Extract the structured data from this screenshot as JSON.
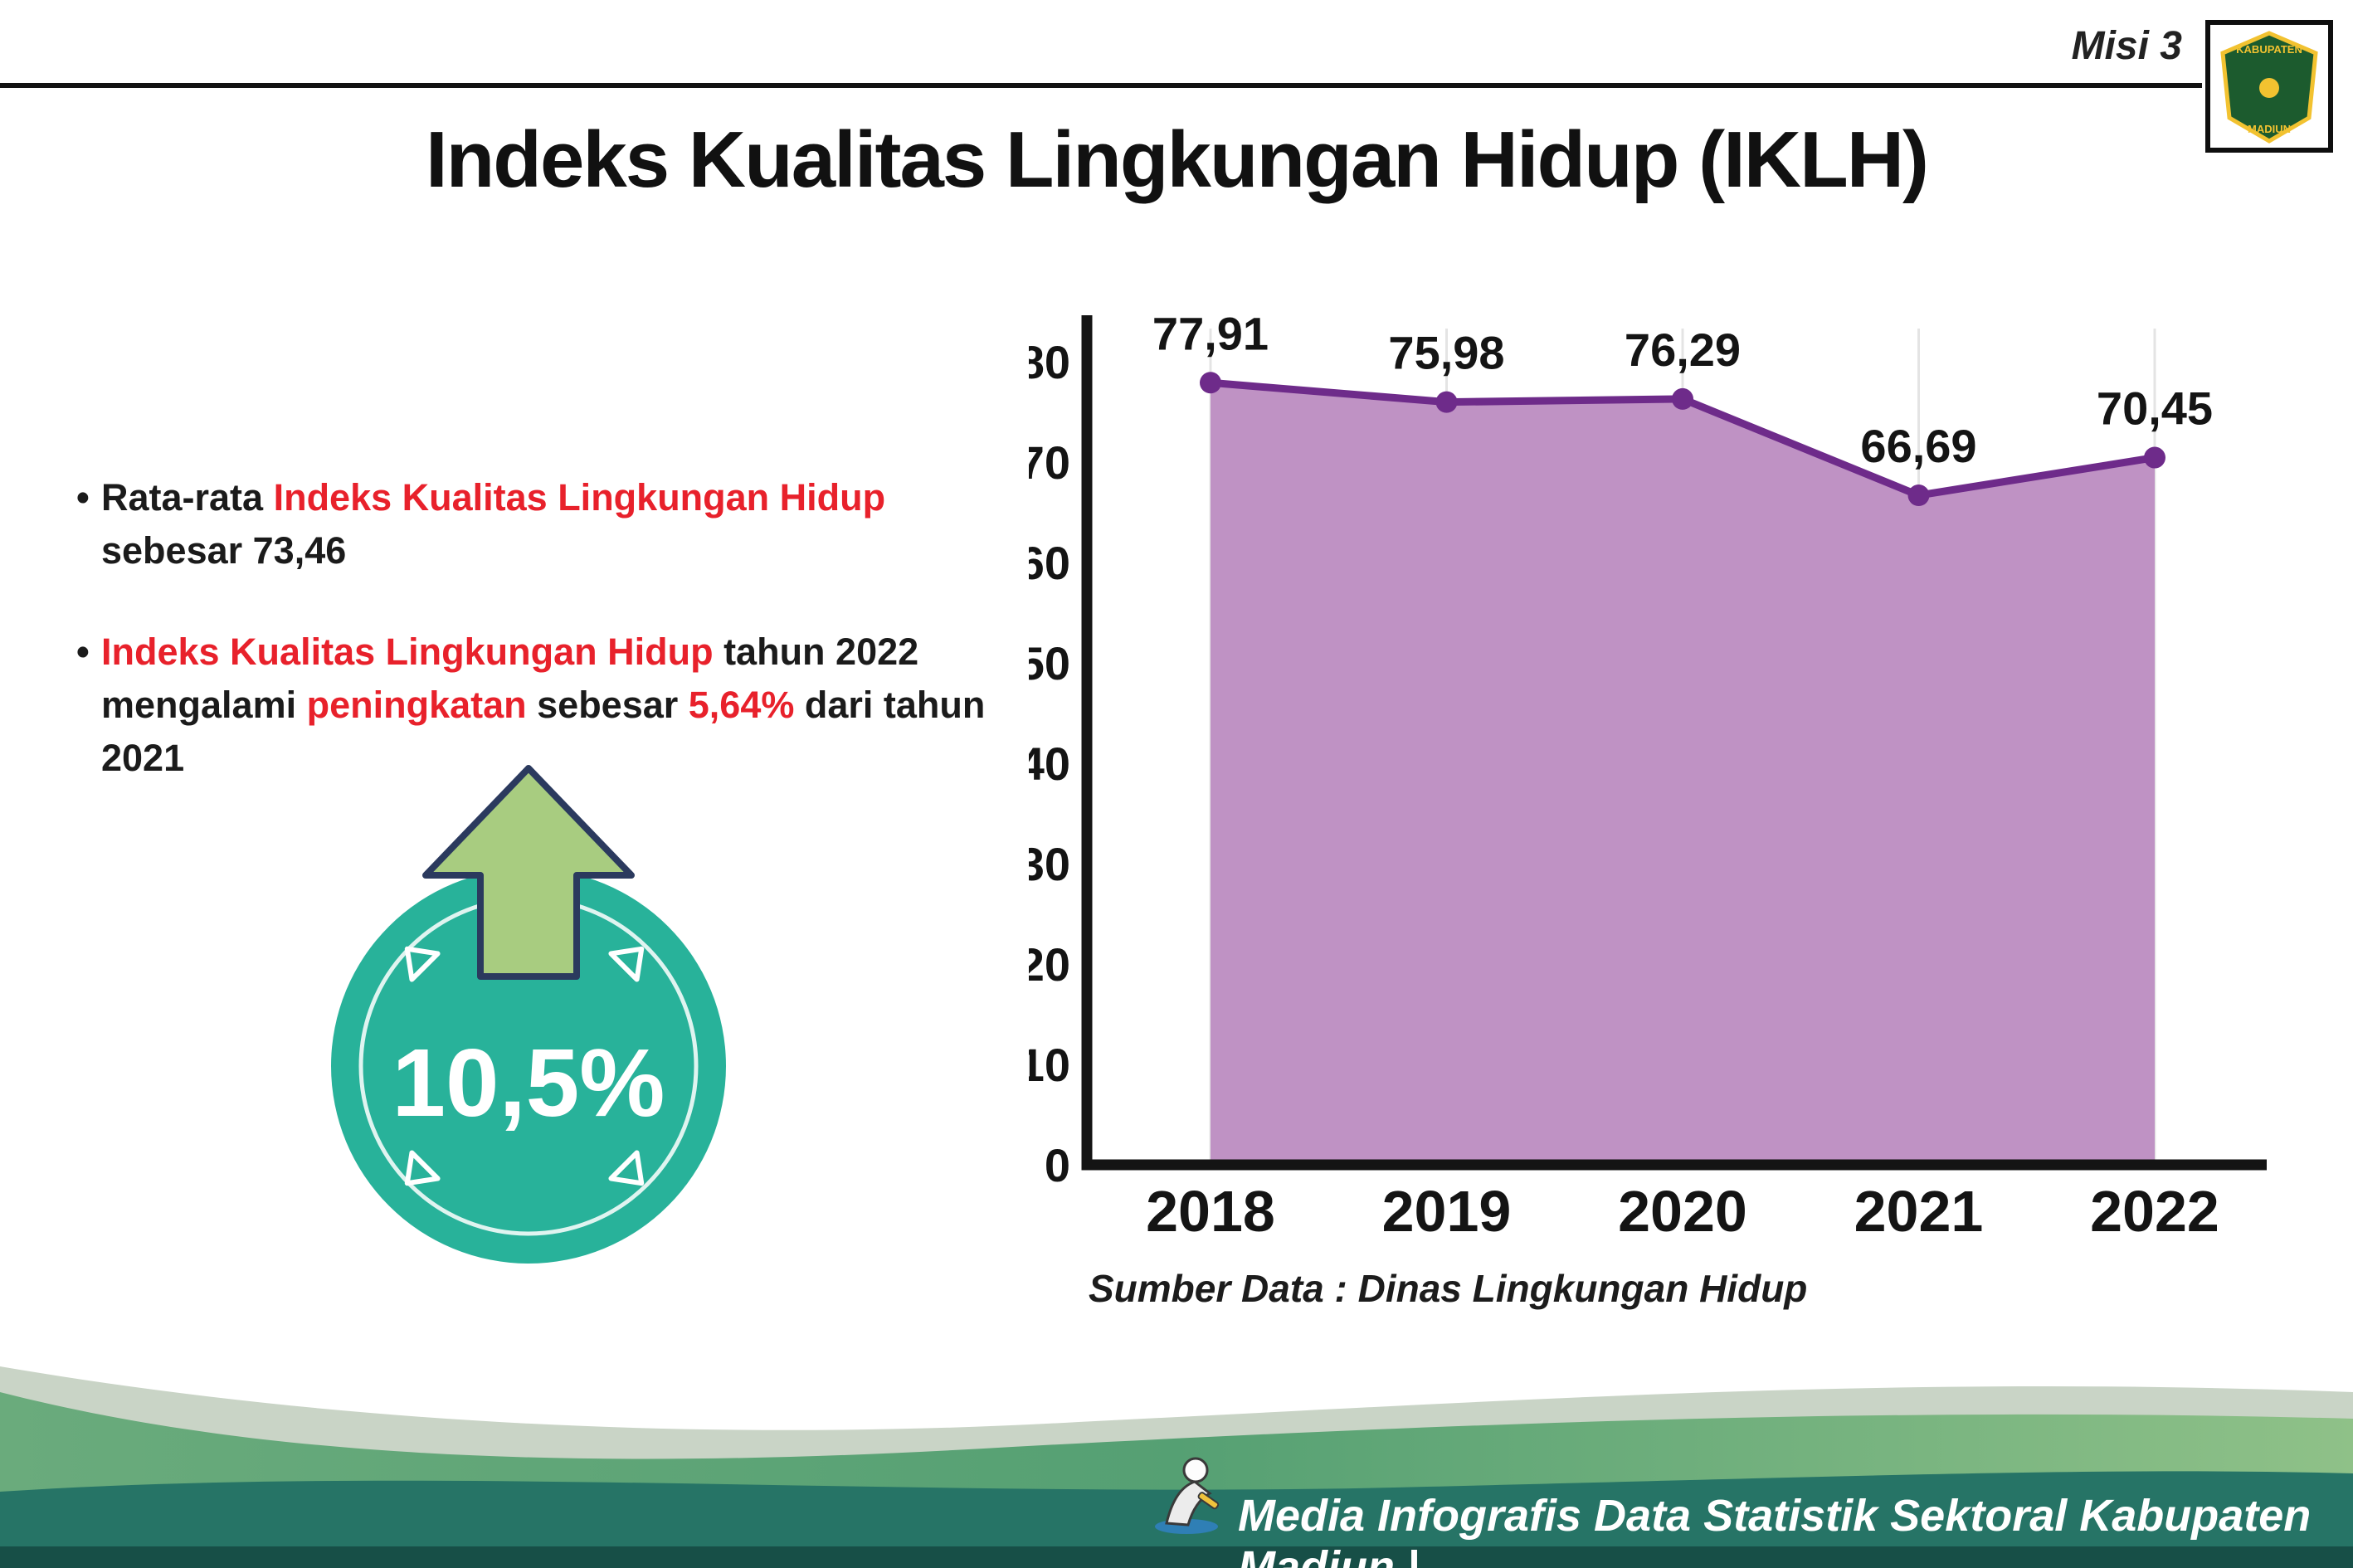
{
  "header": {
    "misi": "Misi 3",
    "title": "Indeks Kualitas Lingkungan Hidup (IKLH)"
  },
  "logo": {
    "line1": "KABUPATEN",
    "line2": "MADIUN"
  },
  "bullets": {
    "marker": "•",
    "b1": {
      "pre": "Rata-rata ",
      "highlight": "Indeks Kualitas Lingkungan Hidup",
      "post": " sebesar 73,46"
    },
    "b2": {
      "h1": "Indeks Kualitas Lingkungan Hidup",
      "t1": " tahun 2022 mengalami ",
      "h2": "peningkatan",
      "t2": " sebesar ",
      "h3": "5,64%",
      "t3": " dari tahun 2021"
    }
  },
  "badge": {
    "value": "10,5%"
  },
  "chart_data": {
    "type": "area",
    "title": "Indeks Kualitas Lingkungan Hidup (IKLH)",
    "categories": [
      "2018",
      "2019",
      "2020",
      "2021",
      "2022"
    ],
    "values": [
      77.91,
      75.98,
      76.29,
      66.69,
      70.45
    ],
    "value_labels": [
      "77,91",
      "75,98",
      "76,29",
      "66,69",
      "70,45"
    ],
    "ylim": [
      0,
      80
    ],
    "ytick_step": 10,
    "grid": "vertical-light",
    "legend": "none",
    "source": "Sumber Data : Dinas Lingkungan Hidup",
    "colors": {
      "area": "#bf92c4",
      "line": "#6e2b8a",
      "point": "#6e2b8a",
      "axis": "#141414"
    }
  },
  "footer": {
    "credit": "Media Infografis Data Statistik Sektoral Kabupaten Madiun |"
  },
  "colors": {
    "accent_red": "#e8212b",
    "badge_teal": "#28b29a",
    "arrow_green": "#a8cc80",
    "arrow_outline": "#2b3a5e"
  }
}
